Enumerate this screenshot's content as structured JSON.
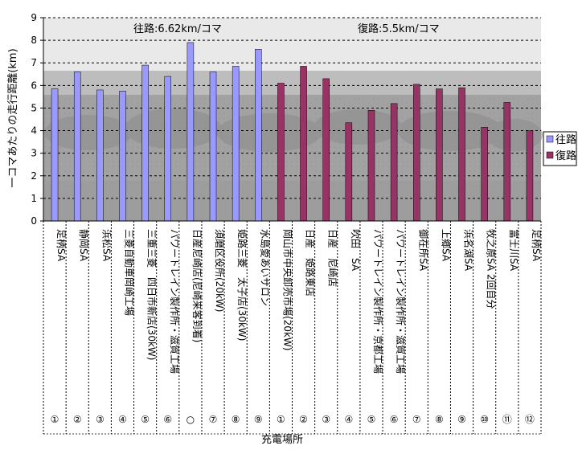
{
  "chart_data": {
    "type": "bar",
    "xlabel": "充電場所",
    "ylabel": "一コマあたりの走行距離(km)",
    "ylim": [
      0,
      9
    ],
    "yticks": [
      0,
      1,
      2,
      3,
      4,
      5,
      6,
      7,
      8,
      9
    ],
    "grid": "horizontal dashed",
    "legend_position": "right",
    "background": "photo of parked cars",
    "annotations": [
      "往路:6.62km/コマ",
      "復路:5.5km/コマ"
    ],
    "categories": [
      "足柄SA",
      "静岡SA",
      "浜松SA",
      "三菱自動車岡崎工場",
      "三重三菱　四日市新店(30kW)",
      "パワートレイン製作所・滋賀工場",
      "日産尼崎店(尼崎来客到着)",
      "須磨区役所(20kW)",
      "姫路三菱　太子店(30kW)",
      "水島愛あいサロン",
      "岡山市中央卸売市場(20kW)",
      "日産　姫路東店",
      "日産　尼崎店",
      "吹田　SA",
      "パワートレイン製作所・京都工場",
      "パワートレイン製作所・滋賀工場",
      "御在所SA",
      "上郷SA",
      "浜名湖SA",
      "牧之原SA 2回目分",
      "富士川SA",
      "足柄SA"
    ],
    "markers": [
      "①",
      "②",
      "③",
      "④",
      "⑤",
      "⑥",
      "○",
      "⑦",
      "⑧",
      "⑨",
      "①",
      "②",
      "③",
      "④",
      "⑤",
      "⑥",
      "⑦",
      "⑧",
      "⑨",
      "⑩",
      "⑪",
      "⑫"
    ],
    "series": [
      {
        "name": "往路",
        "color": "#9999ff",
        "values": [
          5.85,
          6.6,
          5.8,
          5.75,
          6.9,
          6.4,
          7.9,
          6.6,
          6.85,
          7.6,
          null,
          null,
          null,
          null,
          null,
          null,
          null,
          null,
          null,
          null,
          null,
          null
        ]
      },
      {
        "name": "復路",
        "color": "#993366",
        "values": [
          null,
          null,
          null,
          null,
          null,
          null,
          null,
          null,
          null,
          null,
          6.1,
          6.85,
          6.3,
          4.35,
          4.9,
          5.2,
          6.05,
          5.85,
          5.9,
          4.15,
          5.25,
          4.0
        ]
      }
    ]
  }
}
